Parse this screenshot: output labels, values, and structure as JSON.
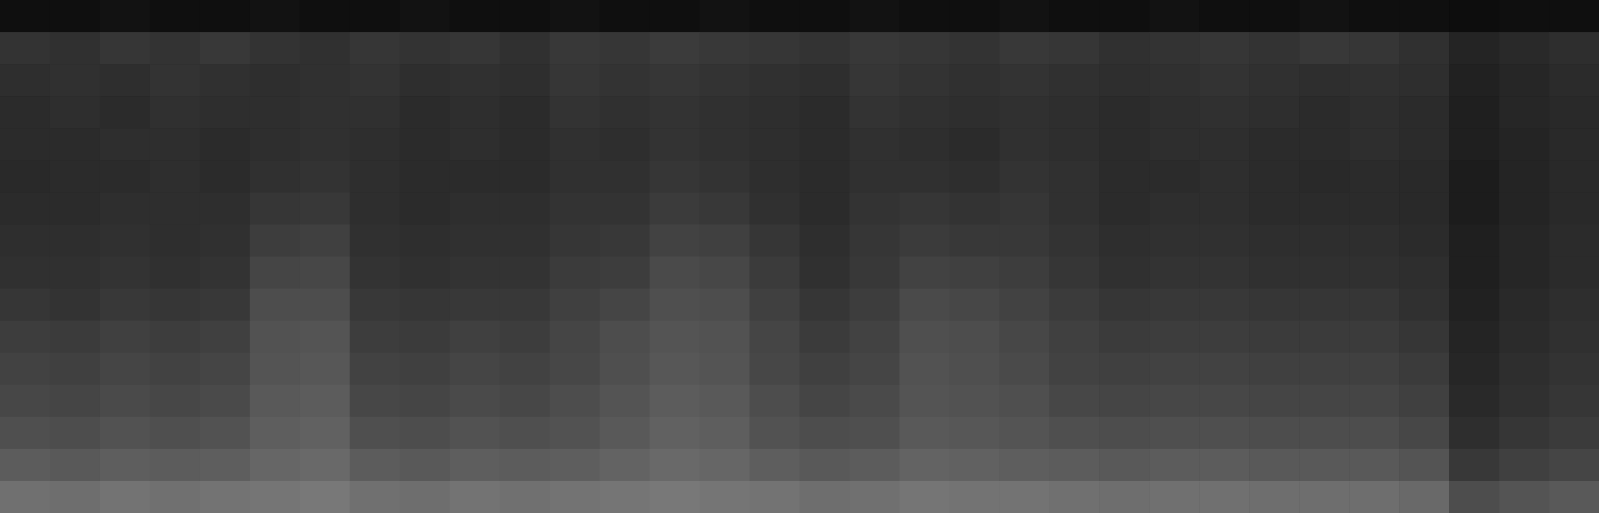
{
  "chart_data": {
    "type": "heatmap",
    "tick_labels": false,
    "color": "#ffffff",
    "zlim": [
      0,
      100
    ],
    "values": [
      [
        6,
        6,
        7,
        6,
        6,
        7,
        6,
        6,
        7,
        6,
        6,
        7,
        6,
        6,
        7,
        6,
        6,
        7,
        6,
        6,
        7,
        6,
        6,
        7,
        6,
        6,
        7,
        6,
        6,
        5,
        6,
        6
      ],
      [
        20,
        19,
        21,
        20,
        22,
        20,
        19,
        21,
        20,
        21,
        19,
        22,
        21,
        23,
        22,
        21,
        20,
        22,
        21,
        20,
        22,
        21,
        19,
        20,
        21,
        20,
        22,
        21,
        19,
        14,
        16,
        18
      ],
      [
        18,
        19,
        18,
        20,
        19,
        18,
        19,
        20,
        18,
        19,
        18,
        21,
        20,
        21,
        20,
        19,
        18,
        21,
        20,
        19,
        20,
        19,
        18,
        19,
        20,
        19,
        18,
        19,
        18,
        13,
        15,
        17
      ],
      [
        17,
        18,
        17,
        19,
        18,
        18,
        19,
        19,
        17,
        18,
        17,
        20,
        19,
        20,
        19,
        18,
        17,
        20,
        19,
        18,
        19,
        18,
        17,
        18,
        19,
        18,
        17,
        18,
        17,
        12,
        15,
        16
      ],
      [
        17,
        17,
        18,
        18,
        17,
        18,
        19,
        18,
        17,
        18,
        17,
        19,
        18,
        20,
        19,
        18,
        17,
        19,
        18,
        17,
        19,
        18,
        17,
        18,
        18,
        17,
        17,
        18,
        17,
        12,
        14,
        16
      ],
      [
        16,
        17,
        17,
        18,
        17,
        19,
        20,
        18,
        17,
        17,
        17,
        19,
        19,
        21,
        20,
        18,
        17,
        19,
        19,
        18,
        20,
        19,
        17,
        17,
        18,
        17,
        16,
        17,
        16,
        11,
        14,
        16
      ],
      [
        17,
        17,
        18,
        18,
        18,
        21,
        22,
        18,
        17,
        18,
        18,
        20,
        20,
        23,
        22,
        19,
        17,
        20,
        21,
        20,
        21,
        19,
        17,
        18,
        18,
        17,
        17,
        17,
        16,
        11,
        14,
        16
      ],
      [
        18,
        18,
        19,
        18,
        19,
        24,
        25,
        19,
        18,
        19,
        19,
        21,
        22,
        26,
        25,
        21,
        18,
        21,
        23,
        22,
        22,
        20,
        18,
        19,
        19,
        18,
        18,
        18,
        17,
        12,
        15,
        17
      ],
      [
        19,
        19,
        20,
        19,
        20,
        27,
        28,
        20,
        19,
        20,
        20,
        23,
        24,
        29,
        28,
        23,
        19,
        22,
        26,
        25,
        24,
        21,
        19,
        20,
        20,
        19,
        19,
        19,
        18,
        12,
        15,
        17
      ],
      [
        21,
        20,
        22,
        21,
        22,
        30,
        30,
        22,
        21,
        22,
        22,
        25,
        27,
        31,
        30,
        25,
        21,
        24,
        29,
        28,
        26,
        23,
        21,
        22,
        22,
        21,
        21,
        21,
        19,
        13,
        16,
        18
      ],
      [
        24,
        23,
        25,
        24,
        25,
        32,
        33,
        24,
        23,
        25,
        24,
        27,
        30,
        33,
        32,
        27,
        23,
        26,
        31,
        30,
        28,
        25,
        23,
        24,
        24,
        23,
        23,
        23,
        21,
        14,
        17,
        19
      ],
      [
        26,
        25,
        27,
        26,
        27,
        33,
        34,
        26,
        25,
        27,
        26,
        28,
        31,
        34,
        33,
        28,
        25,
        27,
        32,
        31,
        29,
        26,
        25,
        26,
        26,
        25,
        25,
        25,
        23,
        15,
        18,
        20
      ],
      [
        28,
        27,
        29,
        28,
        29,
        35,
        36,
        28,
        27,
        29,
        28,
        30,
        33,
        36,
        35,
        30,
        27,
        29,
        33,
        32,
        31,
        28,
        27,
        28,
        28,
        27,
        27,
        27,
        25,
        16,
        19,
        21
      ],
      [
        31,
        30,
        32,
        31,
        32,
        37,
        38,
        31,
        30,
        32,
        31,
        32,
        35,
        38,
        37,
        32,
        30,
        31,
        35,
        34,
        33,
        31,
        30,
        31,
        31,
        30,
        30,
        30,
        28,
        18,
        21,
        23
      ],
      [
        36,
        35,
        37,
        36,
        37,
        40,
        41,
        36,
        35,
        37,
        36,
        37,
        39,
        41,
        40,
        37,
        35,
        36,
        39,
        38,
        37,
        36,
        35,
        36,
        36,
        35,
        35,
        35,
        33,
        22,
        25,
        27
      ],
      [
        44,
        43,
        45,
        44,
        45,
        46,
        47,
        44,
        43,
        45,
        44,
        45,
        46,
        47,
        46,
        45,
        43,
        44,
        46,
        45,
        45,
        44,
        43,
        44,
        44,
        43,
        43,
        43,
        41,
        30,
        33,
        35
      ]
    ]
  }
}
